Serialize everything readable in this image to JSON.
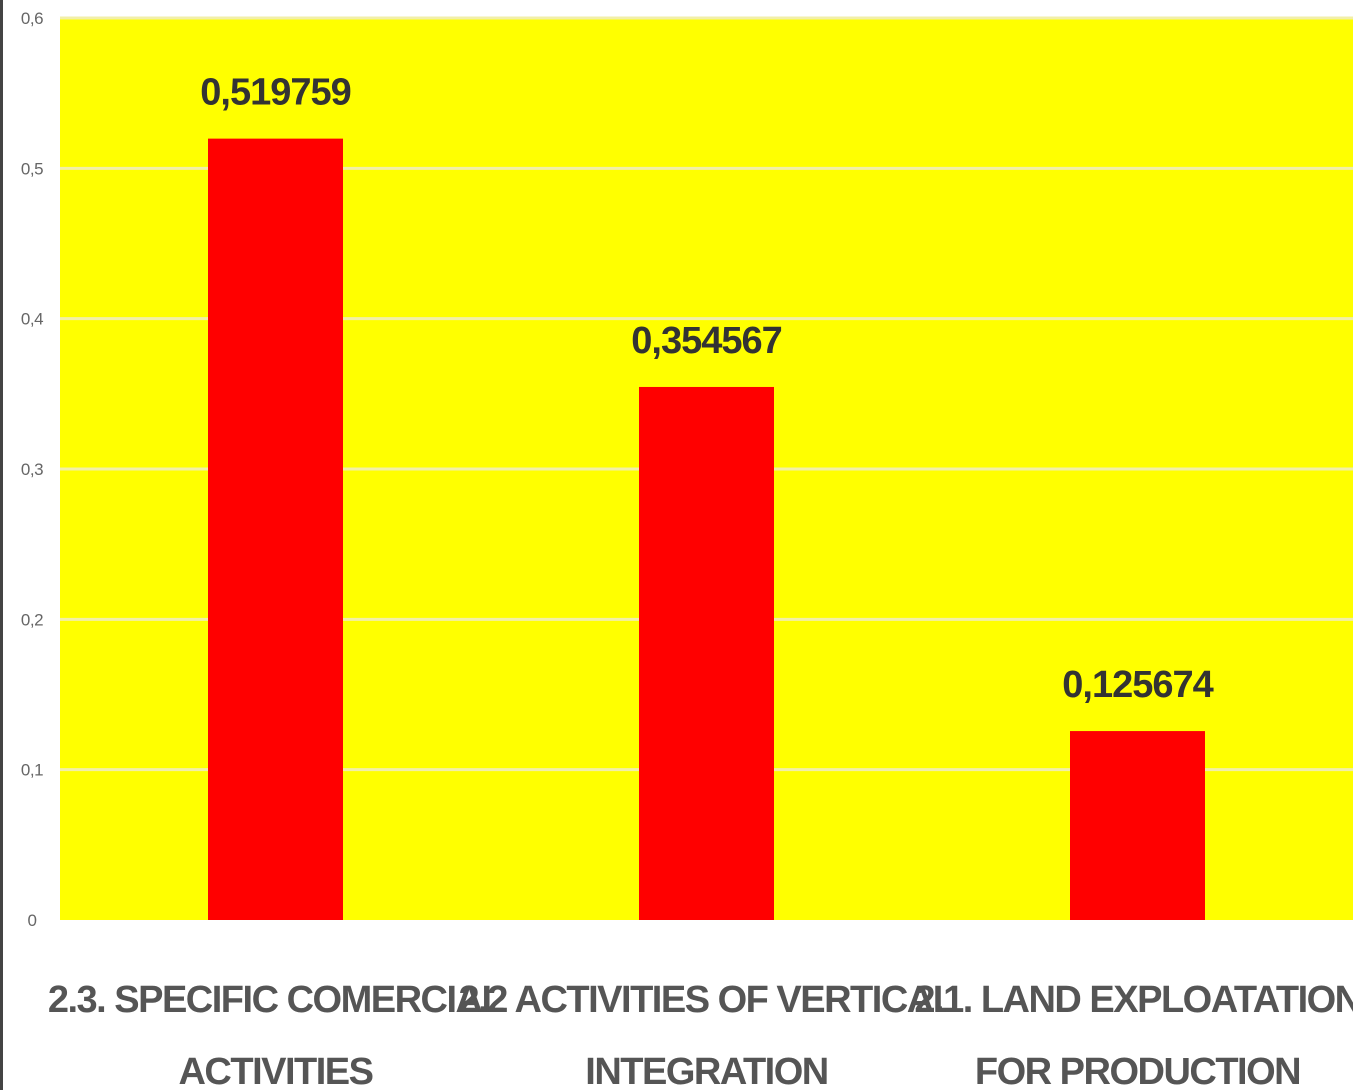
{
  "chart_data": {
    "type": "bar",
    "title": "",
    "xlabel": "",
    "ylabel": "",
    "categories": [
      [
        "2.3. SPECIFIC COMERCIAL",
        "ACTIVITIES"
      ],
      [
        "2.2 ACTIVITIES OF VERTICAL",
        "INTEGRATION"
      ],
      [
        "2.1. LAND EXPLOATATION",
        "FOR PRODUCTION"
      ]
    ],
    "values": [
      0.519759,
      0.354567,
      0.125674
    ],
    "data_labels": [
      "0,519759",
      "0,354567",
      "0,125674"
    ],
    "y_ticks": [
      0,
      0.1,
      0.2,
      0.3,
      0.4,
      0.5,
      0.6
    ],
    "y_tick_labels": [
      "0",
      "0,1",
      "0,2",
      "0,3",
      "0,4",
      "0,5",
      "0,6"
    ],
    "ylim": [
      0,
      0.6
    ],
    "grid": true,
    "legend": "none",
    "colors": {
      "plot_background": "#ffff00",
      "bar": "#ff0000",
      "gridline": "#f2efa8"
    }
  }
}
